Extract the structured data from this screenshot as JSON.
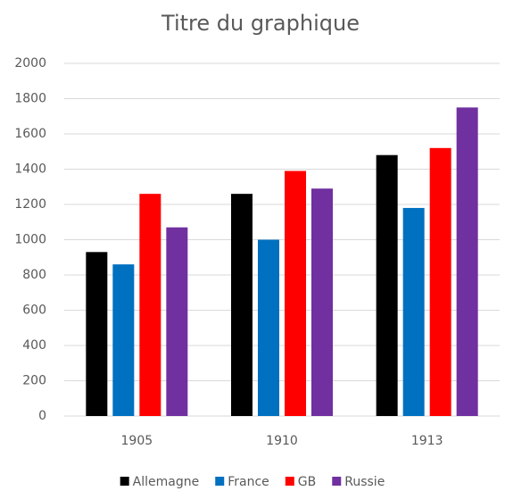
{
  "chart_data": {
    "type": "bar",
    "title": "Titre du graphique",
    "categories": [
      "1905",
      "1910",
      "1913"
    ],
    "series": [
      {
        "name": "Allemagne",
        "color": "#000000",
        "values": [
          930,
          1260,
          1480
        ]
      },
      {
        "name": "France",
        "color": "#0070c0",
        "values": [
          860,
          1000,
          1180
        ]
      },
      {
        "name": "GB",
        "color": "#ff0000",
        "values": [
          1260,
          1390,
          1520
        ]
      },
      {
        "name": "Russie",
        "color": "#7030a0",
        "values": [
          1070,
          1290,
          1750
        ]
      }
    ],
    "ylim": [
      0,
      2000
    ],
    "yticks": [
      0,
      200,
      400,
      600,
      800,
      1000,
      1200,
      1400,
      1600,
      1800,
      2000
    ],
    "grid": true,
    "legend": "bottom"
  }
}
